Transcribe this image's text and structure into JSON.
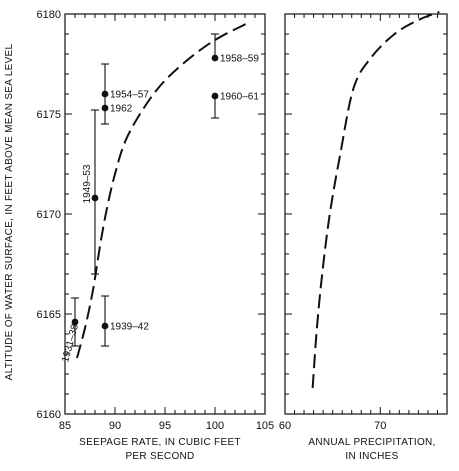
{
  "chart_data": [
    {
      "type": "scatter",
      "panel": "left",
      "xlabel": [
        "SEEPAGE RATE, IN CUBIC FEET",
        "PER SECOND"
      ],
      "ylabel": "ALTITUDE OF WATER SURFACE, IN FEET ABOVE MEAN SEA LEVEL",
      "xlim": [
        85,
        105
      ],
      "ylim": [
        6160,
        6180
      ],
      "xticks": [
        85,
        90,
        95,
        100,
        105
      ],
      "yticks": [
        6160,
        6165,
        6170,
        6175,
        6180
      ],
      "x_minor_step": 1,
      "y_minor_step": 1,
      "points": [
        {
          "label": "1931–38",
          "x": 86.0,
          "y": 6164.6,
          "err_low": 6163.4,
          "err_high": 6165.8,
          "label_side": "below-rotated"
        },
        {
          "label": "1939–42",
          "x": 89.0,
          "y": 6164.4,
          "err_low": 6163.4,
          "err_high": 6165.9,
          "label_side": "right"
        },
        {
          "label": "1949–53",
          "x": 88.0,
          "y": 6170.8,
          "err_low": 6167.0,
          "err_high": 6175.2,
          "label_side": "left-rotated"
        },
        {
          "label": "1954–57",
          "x": 89.0,
          "y": 6176.0,
          "err_low": 6174.5,
          "err_high": 6177.5,
          "label_side": "right"
        },
        {
          "label": "1962",
          "x": 89.0,
          "y": 6175.3,
          "err_low": null,
          "err_high": null,
          "label_side": "right"
        },
        {
          "label": "1958–59",
          "x": 100.0,
          "y": 6177.8,
          "err_low": null,
          "err_high": 6179.0,
          "label_side": "right"
        },
        {
          "label": "1960–61",
          "x": 100.0,
          "y": 6175.9,
          "err_low": 6174.8,
          "err_high": null,
          "label_side": "right"
        }
      ],
      "curve": {
        "style": "dashed",
        "x": [
          86.2,
          87.0,
          87.8,
          88.5,
          89.2,
          90.0,
          91.0,
          92.5,
          94.5,
          97.0,
          100.0,
          103.5
        ],
        "y": [
          6162.8,
          6164.3,
          6166.2,
          6168.4,
          6170.3,
          6172.0,
          6173.6,
          6175.0,
          6176.4,
          6177.6,
          6178.7,
          6179.6
        ]
      }
    },
    {
      "type": "line",
      "panel": "right",
      "xlabel": [
        "ANNUAL PRECIPITATION,",
        "IN INCHES"
      ],
      "xlim": [
        60,
        77
      ],
      "ylim": [
        6160,
        6180
      ],
      "xticks": [
        60,
        70
      ],
      "x_minor_step": 1,
      "y_minor_step": 1,
      "curve": {
        "style": "dashed",
        "x": [
          62.9,
          63.3,
          63.9,
          64.7,
          65.8,
          67.2,
          69.0,
          71.5,
          74.0,
          76.2
        ],
        "y": [
          6161.3,
          6164.0,
          6167.0,
          6170.0,
          6173.0,
          6176.3,
          6177.8,
          6179.0,
          6179.7,
          6180.1
        ]
      }
    }
  ]
}
